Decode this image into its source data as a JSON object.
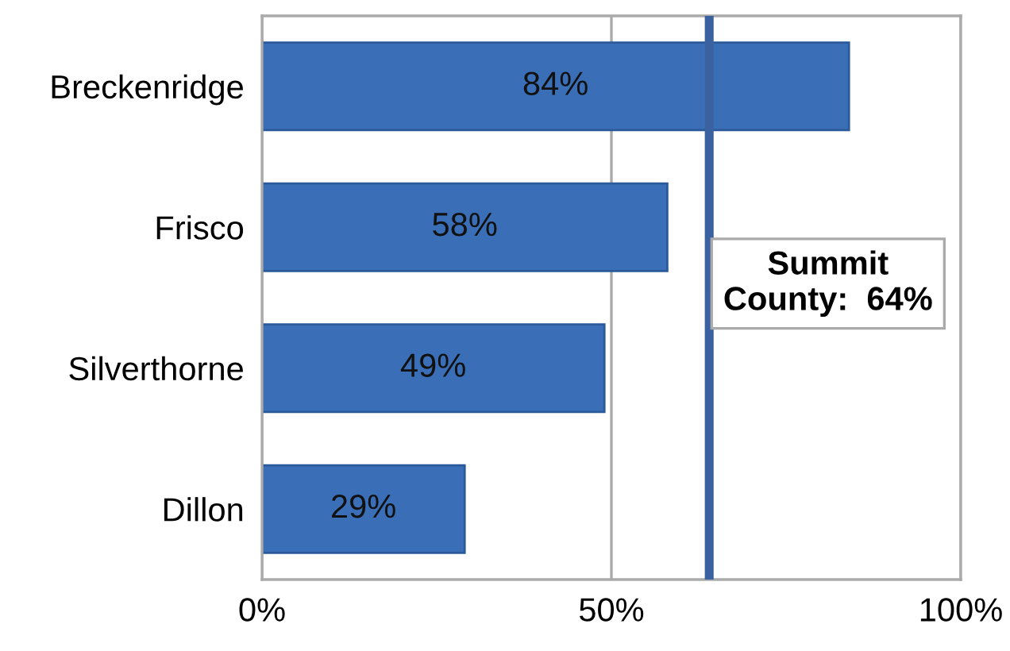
{
  "chart_data": {
    "type": "bar",
    "orientation": "horizontal",
    "categories": [
      "Breckenridge",
      "Frisco",
      "Silverthorne",
      "Dillon"
    ],
    "values": [
      84,
      58,
      49,
      29
    ],
    "value_labels": [
      "84%",
      "58%",
      "49%",
      "29%"
    ],
    "color": "#3a6fb8",
    "xlim": [
      0,
      100
    ],
    "xticks": [
      {
        "value": 0,
        "label": "0%"
      },
      {
        "value": 50,
        "label": "50%"
      },
      {
        "value": 100,
        "label": "100%"
      }
    ],
    "grid": "x",
    "legend": false,
    "ref_lines": [
      {
        "axis": "x",
        "value": 64,
        "label": "Summit\nCounty:  64%",
        "color": "#3a62a0",
        "line_style": "solid"
      }
    ]
  }
}
